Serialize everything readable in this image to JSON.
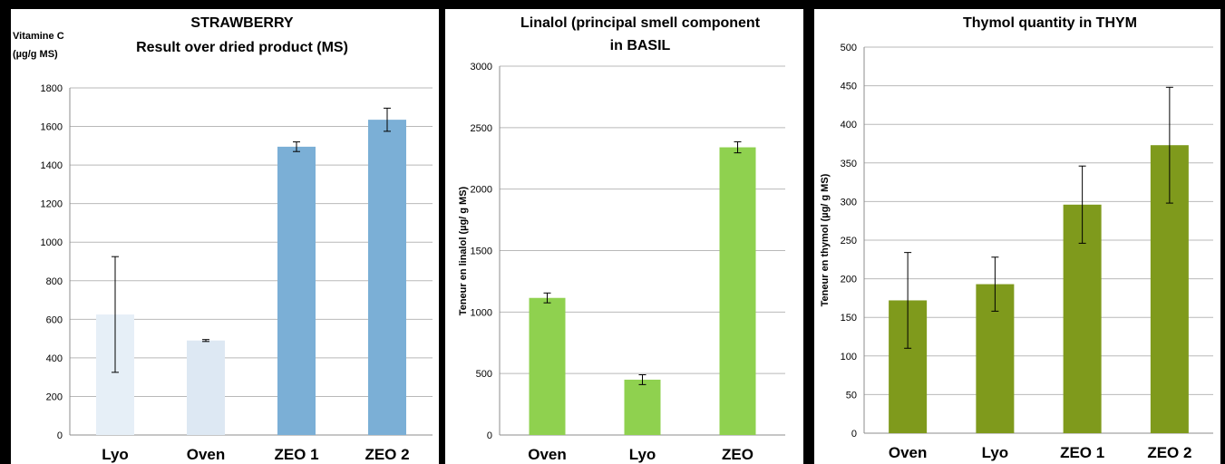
{
  "chart_data": [
    {
      "type": "bar",
      "title": [
        "STRAWBERRY",
        "Result over dried product (MS)"
      ],
      "ylabel": [
        "Vitamine C",
        "(µg/g MS)"
      ],
      "xlabel": "",
      "categories": [
        "Lyo",
        "Oven",
        "ZEO 1",
        "ZEO 2"
      ],
      "values": [
        625,
        490,
        1495,
        1635
      ],
      "errors": [
        300,
        5,
        25,
        60
      ],
      "colors": [
        "#e6eff7",
        "#dde8f3",
        "#7bafd6",
        "#7bafd6"
      ],
      "ylim": [
        0,
        1800
      ],
      "yticks": [
        0,
        200,
        400,
        600,
        800,
        1000,
        1200,
        1400,
        1600,
        1800
      ],
      "grid": true,
      "legend": "none"
    },
    {
      "type": "bar",
      "title": [
        "Linalol (principal smell component",
        "in BASIL"
      ],
      "ylabel": [
        "Teneur en linalol (µg/ g MS)"
      ],
      "xlabel": "",
      "categories": [
        "Oven",
        "Lyo",
        "ZEO"
      ],
      "values": [
        1115,
        450,
        2340
      ],
      "errors": [
        40,
        40,
        45
      ],
      "colors": [
        "#8fd14f",
        "#8fd14f",
        "#8fd14f"
      ],
      "ylim": [
        0,
        3000
      ],
      "yticks": [
        0,
        500,
        1000,
        1500,
        2000,
        2500,
        3000
      ],
      "grid": true,
      "legend": "none"
    },
    {
      "type": "bar",
      "title": [
        "Thymol quantity in THYM"
      ],
      "ylabel": [
        "Teneur en thymol (µg/ g MS)"
      ],
      "xlabel": "",
      "categories": [
        "Oven",
        "Lyo",
        "ZEO 1",
        "ZEO 2"
      ],
      "values": [
        172,
        193,
        296,
        373
      ],
      "errors": [
        62,
        35,
        50,
        75
      ],
      "colors": [
        "#7f9a1c",
        "#7f9a1c",
        "#7f9a1c",
        "#7f9a1c"
      ],
      "ylim": [
        0,
        500
      ],
      "yticks": [
        0,
        50,
        100,
        150,
        200,
        250,
        300,
        350,
        400,
        450,
        500
      ],
      "grid": true,
      "legend": "none"
    }
  ]
}
